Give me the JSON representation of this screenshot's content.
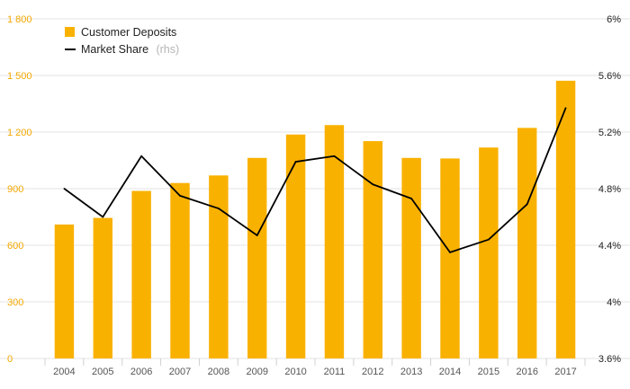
{
  "colors": {
    "bars": "#F9B100",
    "line": "#000000",
    "left_axis": "#F5A800",
    "grid": "#e3e3e3"
  },
  "legend": {
    "bars_label": "Customer Deposits",
    "line_label": "Market Share",
    "line_suffix": "(rhs)",
    "placement": "top-left"
  },
  "chart_data": {
    "type": "bar",
    "categories": [
      "2004",
      "2005",
      "2006",
      "2007",
      "2008",
      "2009",
      "2010",
      "2011",
      "2012",
      "2013",
      "2014",
      "2015",
      "2016",
      "2017"
    ],
    "series": [
      {
        "name": "Customer Deposits",
        "type": "bar",
        "axis": "left",
        "values": [
          710,
          745,
          888,
          930,
          970,
          1063,
          1187,
          1237,
          1152,
          1063,
          1060,
          1118,
          1222,
          1472
        ]
      },
      {
        "name": "Market Share",
        "type": "line",
        "axis": "right",
        "values": [
          4.8,
          4.6,
          5.03,
          4.75,
          4.66,
          4.47,
          4.99,
          5.03,
          4.83,
          4.73,
          4.35,
          4.44,
          4.69,
          5.37
        ]
      }
    ],
    "y_left": {
      "min": 0,
      "max": 1800,
      "ticks": [
        0,
        300,
        600,
        900,
        1200,
        1500,
        1800
      ],
      "tick_labels": [
        "0",
        "300",
        "600",
        "900",
        "1 200",
        "1 500",
        "1 800"
      ]
    },
    "y_right": {
      "min": 3.6,
      "max": 6.0,
      "ticks": [
        3.6,
        4.0,
        4.4,
        4.8,
        5.2,
        5.6,
        6.0
      ],
      "tick_labels": [
        "3.6%",
        "4%",
        "4.4%",
        "4.8%",
        "5.2%",
        "5.6%",
        "6%"
      ]
    },
    "grid": true,
    "title": "",
    "xlabel": "",
    "ylabel": ""
  }
}
